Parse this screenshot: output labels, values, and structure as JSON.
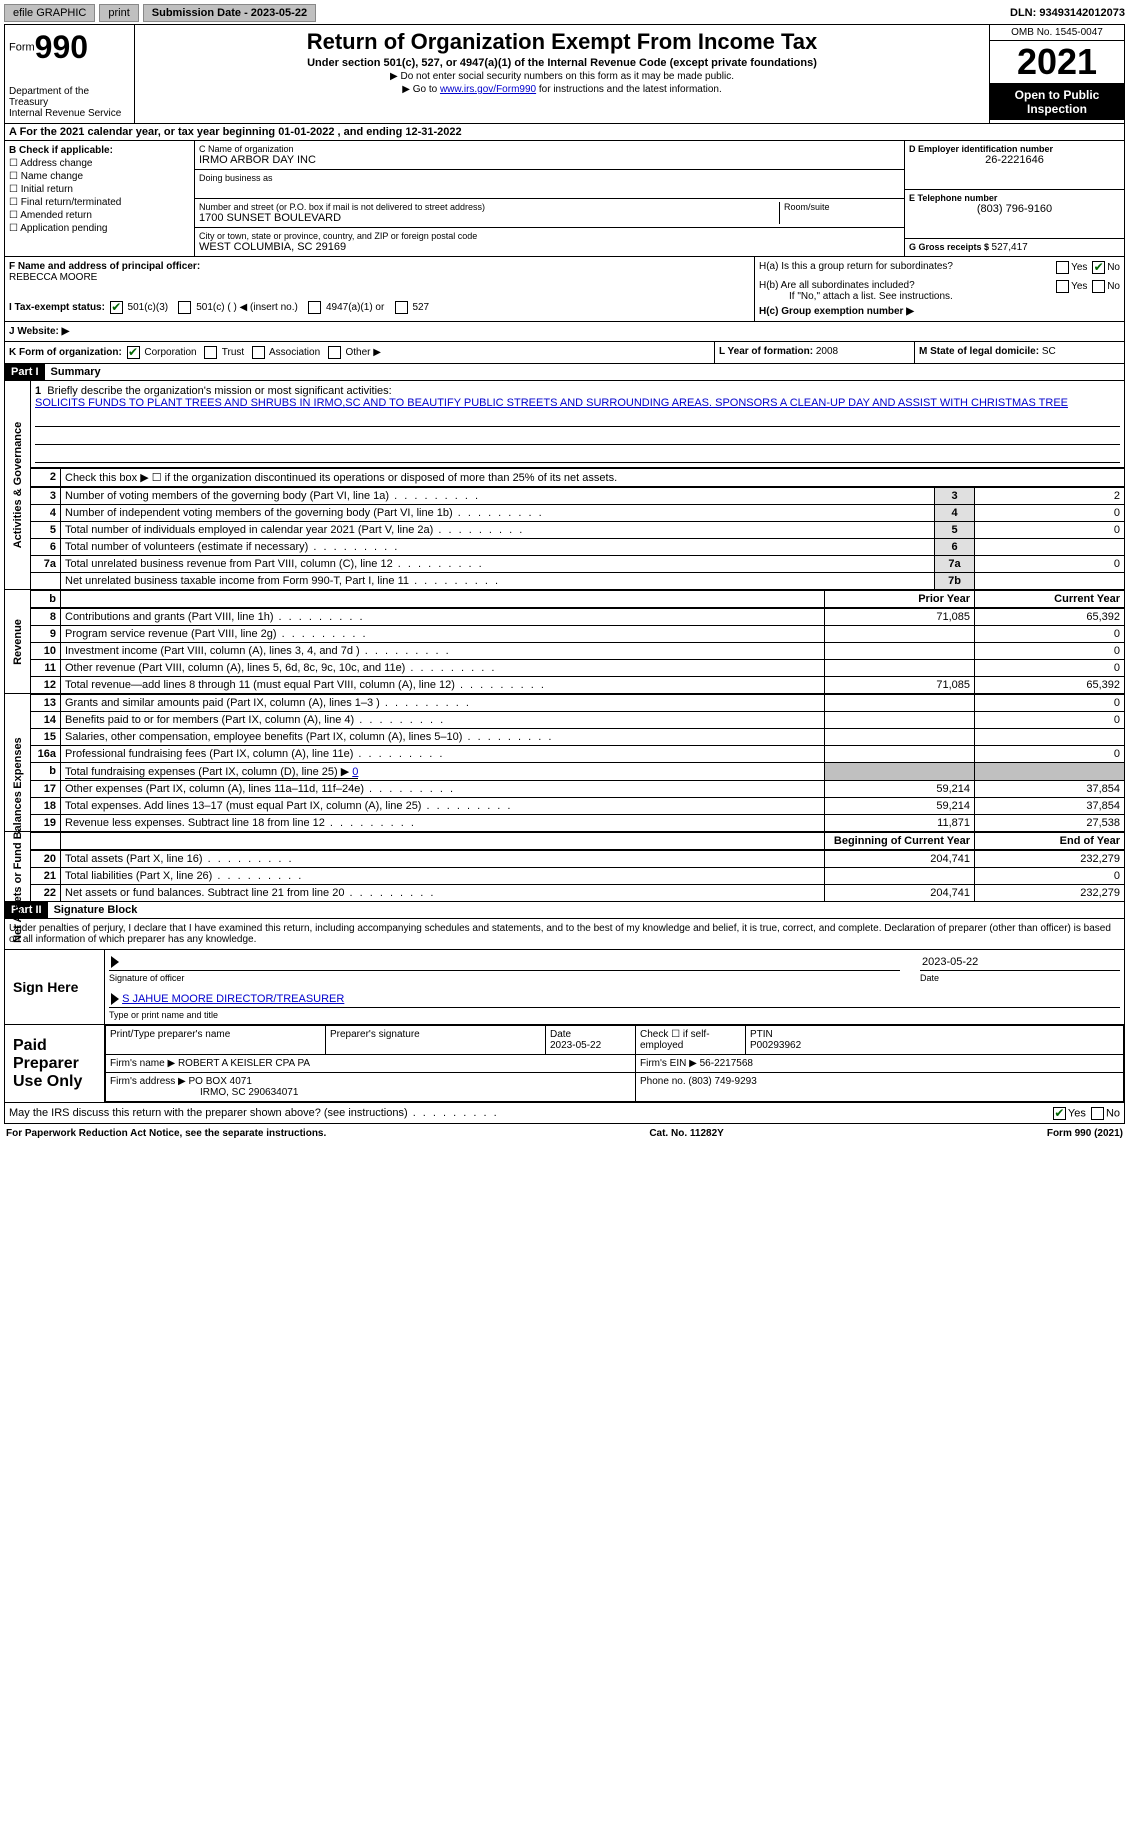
{
  "colors": {
    "black": "#000000",
    "white": "#ffffff",
    "link": "#0000cc",
    "grey": "#c0c0c0",
    "checkgreen": "#006400"
  },
  "topbar": {
    "efile": "efile GRAPHIC",
    "print": "print",
    "subdate_lbl": "Submission Date - ",
    "subdate": "2023-05-22",
    "dln_lbl": "DLN: ",
    "dln": "93493142012073"
  },
  "header": {
    "form_lbl": "Form",
    "form_num": "990",
    "dept": "Department of the Treasury",
    "irs": "Internal Revenue Service",
    "title": "Return of Organization Exempt From Income Tax",
    "subtitle": "Under section 501(c), 527, or 4947(a)(1) of the Internal Revenue Code (except private foundations)",
    "note1": "▶ Do not enter social security numbers on this form as it may be made public.",
    "note2_pre": "▶ Go to ",
    "note2_link": "www.irs.gov/Form990",
    "note2_post": " for instructions and the latest information.",
    "omb": "OMB No. 1545-0047",
    "year": "2021",
    "opentopublic": "Open to Public Inspection"
  },
  "calyear": "A For the 2021 calendar year, or tax year beginning 01-01-2022   , and ending 12-31-2022",
  "B": {
    "lbl": "B Check if applicable:",
    "opts": [
      "Address change",
      "Name change",
      "Initial return",
      "Final return/terminated",
      "Amended return",
      "Application pending"
    ]
  },
  "C": {
    "name_lbl": "C Name of organization",
    "name": "IRMO ARBOR DAY INC",
    "dba_lbl": "Doing business as",
    "street_lbl": "Number and street (or P.O. box if mail is not delivered to street address)",
    "street": "1700 SUNSET BOULEVARD",
    "room_lbl": "Room/suite",
    "city_lbl": "City or town, state or province, country, and ZIP or foreign postal code",
    "city": "WEST COLUMBIA, SC  29169"
  },
  "D": {
    "lbl": "D Employer identification number",
    "val": "26-2221646"
  },
  "E": {
    "lbl": "E Telephone number",
    "val": "(803) 796-9160"
  },
  "G": {
    "lbl": "G Gross receipts $ ",
    "val": "527,417"
  },
  "F": {
    "lbl": "F  Name and address of principal officer:",
    "val": "REBECCA MOORE"
  },
  "H": {
    "a_lbl": "H(a)  Is this a group return for subordinates?",
    "b_lbl": "H(b)  Are all subordinates included?",
    "b_note": "If \"No,\" attach a list. See instructions.",
    "c_lbl": "H(c)  Group exemption number ▶",
    "yes": "Yes",
    "no": "No"
  },
  "I": {
    "lbl": "I   Tax-exempt status:",
    "opts": [
      "501(c)(3)",
      "501(c) (  ) ◀ (insert no.)",
      "4947(a)(1) or",
      "527"
    ]
  },
  "J": {
    "lbl": "J   Website: ▶"
  },
  "K": {
    "lbl": "K Form of organization:",
    "opts": [
      "Corporation",
      "Trust",
      "Association",
      "Other ▶"
    ]
  },
  "L": {
    "lbl": "L Year of formation: ",
    "val": "2008"
  },
  "M": {
    "lbl": "M State of legal domicile: ",
    "val": "SC"
  },
  "part1": {
    "hdr": "Part I",
    "title": "Summary",
    "line1_lbl": "Briefly describe the organization's mission or most significant activities:",
    "line1_val": "SOLICITS FUNDS TO PLANT TREES AND SHRUBS IN IRMO,SC AND TO BEAUTIFY PUBLIC STREETS AND SURROUNDING AREAS. SPONSORS A CLEAN-UP DAY AND ASSIST WITH CHRISTMAS TREE",
    "line2": "Check this box ▶ ☐  if the organization discontinued its operations or disposed of more than 25% of its net assets.",
    "rows_3_7": [
      {
        "n": "3",
        "t": "Number of voting members of the governing body (Part VI, line 1a)",
        "box": "3",
        "v": "2"
      },
      {
        "n": "4",
        "t": "Number of independent voting members of the governing body (Part VI, line 1b)",
        "box": "4",
        "v": "0"
      },
      {
        "n": "5",
        "t": "Total number of individuals employed in calendar year 2021 (Part V, line 2a)",
        "box": "5",
        "v": "0"
      },
      {
        "n": "6",
        "t": "Total number of volunteers (estimate if necessary)",
        "box": "6",
        "v": ""
      },
      {
        "n": "7a",
        "t": "Total unrelated business revenue from Part VIII, column (C), line 12",
        "box": "7a",
        "v": "0"
      },
      {
        "n": "",
        "t": "Net unrelated business taxable income from Form 990-T, Part I, line 11",
        "box": "7b",
        "v": ""
      }
    ],
    "vlabels": {
      "ag": "Activities & Governance",
      "rev": "Revenue",
      "exp": "Expenses",
      "na": "Net Assets or Fund Balances"
    },
    "cols": {
      "prior": "Prior Year",
      "curr": "Current Year",
      "begin": "Beginning of Current Year",
      "end": "End of Year"
    },
    "revenue": [
      {
        "n": "8",
        "t": "Contributions and grants (Part VIII, line 1h)",
        "p": "71,085",
        "c": "65,392"
      },
      {
        "n": "9",
        "t": "Program service revenue (Part VIII, line 2g)",
        "p": "",
        "c": "0"
      },
      {
        "n": "10",
        "t": "Investment income (Part VIII, column (A), lines 3, 4, and 7d )",
        "p": "",
        "c": "0"
      },
      {
        "n": "11",
        "t": "Other revenue (Part VIII, column (A), lines 5, 6d, 8c, 9c, 10c, and 11e)",
        "p": "",
        "c": "0"
      },
      {
        "n": "12",
        "t": "Total revenue—add lines 8 through 11 (must equal Part VIII, column (A), line 12)",
        "p": "71,085",
        "c": "65,392"
      }
    ],
    "expenses": [
      {
        "n": "13",
        "t": "Grants and similar amounts paid (Part IX, column (A), lines 1–3 )",
        "p": "",
        "c": "0"
      },
      {
        "n": "14",
        "t": "Benefits paid to or for members (Part IX, column (A), line 4)",
        "p": "",
        "c": "0"
      },
      {
        "n": "15",
        "t": "Salaries, other compensation, employee benefits (Part IX, column (A), lines 5–10)",
        "p": "",
        "c": ""
      },
      {
        "n": "16a",
        "t": "Professional fundraising fees (Part IX, column (A), line 11e)",
        "p": "",
        "c": "0"
      },
      {
        "n": "b",
        "t": "Total fundraising expenses (Part IX, column (D), line 25) ▶ 0",
        "p": "SHADE",
        "c": "SHADE"
      },
      {
        "n": "17",
        "t": "Other expenses (Part IX, column (A), lines 11a–11d, 11f–24e)",
        "p": "59,214",
        "c": "37,854"
      },
      {
        "n": "18",
        "t": "Total expenses. Add lines 13–17 (must equal Part IX, column (A), line 25)",
        "p": "59,214",
        "c": "37,854"
      },
      {
        "n": "19",
        "t": "Revenue less expenses. Subtract line 18 from line 12",
        "p": "11,871",
        "c": "27,538"
      }
    ],
    "netassets": [
      {
        "n": "20",
        "t": "Total assets (Part X, line 16)",
        "p": "204,741",
        "c": "232,279"
      },
      {
        "n": "21",
        "t": "Total liabilities (Part X, line 26)",
        "p": "",
        "c": "0"
      },
      {
        "n": "22",
        "t": "Net assets or fund balances. Subtract line 21 from line 20",
        "p": "204,741",
        "c": "232,279"
      }
    ]
  },
  "part2": {
    "hdr": "Part II",
    "title": "Signature Block",
    "penalties": "Under penalties of perjury, I declare that I have examined this return, including accompanying schedules and statements, and to the best of my knowledge and belief, it is true, correct, and complete. Declaration of preparer (other than officer) is based on all information of which preparer has any knowledge.",
    "sign_here": "Sign Here",
    "sig_officer": "Signature of officer",
    "sig_date": "2023-05-22",
    "date_lbl": "Date",
    "type_name": "S JAHUE MOORE  DIRECTOR/TREASURER",
    "type_lbl": "Type or print name and title",
    "paid": "Paid Preparer Use Only",
    "prep_name_lbl": "Print/Type preparer's name",
    "prep_sig_lbl": "Preparer's signature",
    "prep_date": "2023-05-22",
    "check_self": "Check ☐ if self-employed",
    "ptin_lbl": "PTIN",
    "ptin": "P00293962",
    "firm_name_lbl": "Firm's name   ▶",
    "firm_name": "ROBERT A KEISLER CPA PA",
    "firm_ein_lbl": "Firm's EIN ▶",
    "firm_ein": "56-2217568",
    "firm_addr_lbl": "Firm's address ▶",
    "firm_addr": "PO BOX 4071",
    "firm_addr2": "IRMO, SC  290634071",
    "phone_lbl": "Phone no. ",
    "phone": "(803) 749-9293",
    "may_irs": "May the IRS discuss this return with the preparer shown above? (see instructions)"
  },
  "footer": {
    "pra": "For Paperwork Reduction Act Notice, see the separate instructions.",
    "cat": "Cat. No. 11282Y",
    "formrev": "Form 990 (2021)"
  }
}
